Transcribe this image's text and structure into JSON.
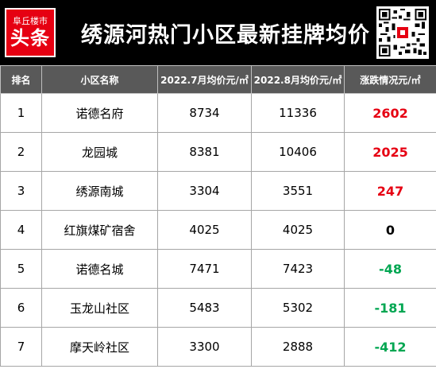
{
  "header": {
    "logo_top": "阜丘楼市",
    "logo_main": "头条",
    "title": "绣源河热门小区最新挂牌均价"
  },
  "table": {
    "columns": [
      "排名",
      "小区名称",
      "2022.7月均价元/㎡",
      "2022.8月均价元/㎡",
      "涨跌情况元/㎡"
    ],
    "rows": [
      {
        "rank": "1",
        "name": "诺德名府",
        "jul": "8734",
        "aug": "11336",
        "change": "2602",
        "trend": "up"
      },
      {
        "rank": "2",
        "name": "龙园城",
        "jul": "8381",
        "aug": "10406",
        "change": "2025",
        "trend": "up"
      },
      {
        "rank": "3",
        "name": "绣源南城",
        "jul": "3304",
        "aug": "3551",
        "change": "247",
        "trend": "up"
      },
      {
        "rank": "4",
        "name": "红旗煤矿宿舍",
        "jul": "4025",
        "aug": "4025",
        "change": "0",
        "trend": "flat"
      },
      {
        "rank": "5",
        "name": "诺德名城",
        "jul": "7471",
        "aug": "7423",
        "change": "-48",
        "trend": "down"
      },
      {
        "rank": "6",
        "name": "玉龙山社区",
        "jul": "5483",
        "aug": "5302",
        "change": "-181",
        "trend": "down"
      },
      {
        "rank": "7",
        "name": "摩天岭社区",
        "jul": "3300",
        "aug": "2888",
        "change": "-412",
        "trend": "down"
      }
    ]
  },
  "colors": {
    "banner_bg": "#000000",
    "logo_bg": "#e60012",
    "header_bg": "#595959",
    "up": "#e60012",
    "down": "#00a651",
    "flat": "#000000"
  },
  "icons": {
    "qr": "qr-code-icon"
  }
}
